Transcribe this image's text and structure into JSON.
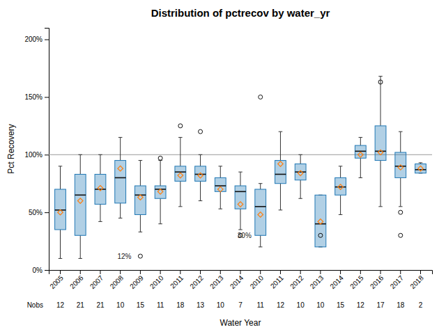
{
  "chart_data": {
    "type": "box",
    "title": "Distribution of pctrecov by water_yr",
    "x_label": "Water Year",
    "y_label": "Pct Recovery",
    "categories": [
      "2005",
      "2006",
      "2007",
      "2008",
      "2009",
      "2010",
      "2011",
      "2012",
      "2013",
      "2014",
      "2010",
      "2011",
      "2012",
      "2013",
      "2014",
      "2015",
      "2016",
      "2017",
      "2018"
    ],
    "boxes": [
      {
        "q1": 35,
        "med": 52,
        "q3": 70,
        "mean": 50,
        "whishi": 90,
        "whislo": 10,
        "fliers": []
      },
      {
        "q1": 30,
        "med": 65,
        "q3": 83,
        "mean": 60,
        "whishi": 100,
        "whislo": 10,
        "fliers": []
      },
      {
        "q1": 57,
        "med": 70,
        "q3": 83,
        "mean": 71,
        "whishi": 100,
        "whislo": 42,
        "fliers": []
      },
      {
        "q1": 58,
        "med": 80,
        "q3": 95,
        "mean": 88,
        "whishi": 115,
        "whislo": 45,
        "fliers": []
      },
      {
        "q1": 48,
        "med": 65,
        "q3": 73,
        "mean": 63,
        "whishi": 95,
        "whislo": 33,
        "fliers": [
          12
        ]
      },
      {
        "q1": 62,
        "med": 70,
        "q3": 73,
        "mean": 68,
        "whishi": 95,
        "whislo": 40,
        "fliers": [
          97
        ]
      },
      {
        "q1": 77,
        "med": 85,
        "q3": 90,
        "mean": 82,
        "whishi": 115,
        "whislo": 55,
        "fliers": [
          125
        ]
      },
      {
        "q1": 77,
        "med": 83,
        "q3": 90,
        "mean": 82,
        "whishi": 100,
        "whislo": 60,
        "fliers": [
          120
        ]
      },
      {
        "q1": 68,
        "med": 73,
        "q3": 80,
        "mean": 70,
        "whishi": 90,
        "whislo": 53,
        "fliers": []
      },
      {
        "q1": 53,
        "med": 68,
        "q3": 73,
        "mean": 57,
        "whishi": 85,
        "whislo": 35,
        "fliers": [
          30
        ]
      },
      {
        "q1": 30,
        "med": 55,
        "q3": 70,
        "mean": 48,
        "whishi": 75,
        "whislo": 20,
        "fliers": [
          150
        ]
      },
      {
        "q1": 75,
        "med": 83,
        "q3": 95,
        "mean": 92,
        "whishi": 120,
        "whislo": 52,
        "fliers": []
      },
      {
        "q1": 78,
        "med": 85,
        "q3": 92,
        "mean": 84,
        "whishi": 100,
        "whislo": 62,
        "fliers": []
      },
      {
        "q1": 20,
        "med": 40,
        "q3": 65,
        "mean": 42,
        "whishi": 65,
        "whislo": 20,
        "fliers": [
          30
        ]
      },
      {
        "q1": 65,
        "med": 72,
        "q3": 80,
        "mean": 72,
        "whishi": 90,
        "whislo": 48,
        "fliers": []
      },
      {
        "q1": 97,
        "med": 103,
        "q3": 108,
        "mean": 100,
        "whishi": 115,
        "whislo": 80,
        "fliers": []
      },
      {
        "q1": 95,
        "med": 103,
        "q3": 125,
        "mean": 102,
        "whishi": 168,
        "whislo": 55,
        "fliers": [
          163
        ]
      },
      {
        "q1": 80,
        "med": 90,
        "q3": 102,
        "mean": 89,
        "whishi": 120,
        "whislo": 55,
        "fliers": [
          50,
          30
        ]
      },
      {
        "q1": 84,
        "med": 87,
        "q3": 92,
        "mean": 88,
        "whishi": 93,
        "whislo": 84,
        "fliers": []
      }
    ],
    "nobs_label": "Nobs",
    "nobs": [
      12,
      21,
      21,
      10,
      15,
      11,
      18,
      13,
      10,
      7,
      11,
      12,
      10,
      10,
      15,
      12,
      17,
      18,
      2
    ],
    "reference_line": 100,
    "annotations": [
      {
        "index": 4,
        "value": 12,
        "text": "12%"
      },
      {
        "index": 10,
        "value": 30,
        "text": "30%"
      }
    ],
    "ylim": [
      0,
      210
    ],
    "yticks": [
      {
        "value": 0,
        "label": "0%"
      },
      {
        "value": 50,
        "label": "50%"
      },
      {
        "value": 100,
        "label": "100%"
      },
      {
        "value": 150,
        "label": "150%"
      },
      {
        "value": 200,
        "label": "200%"
      }
    ],
    "grid": false
  }
}
